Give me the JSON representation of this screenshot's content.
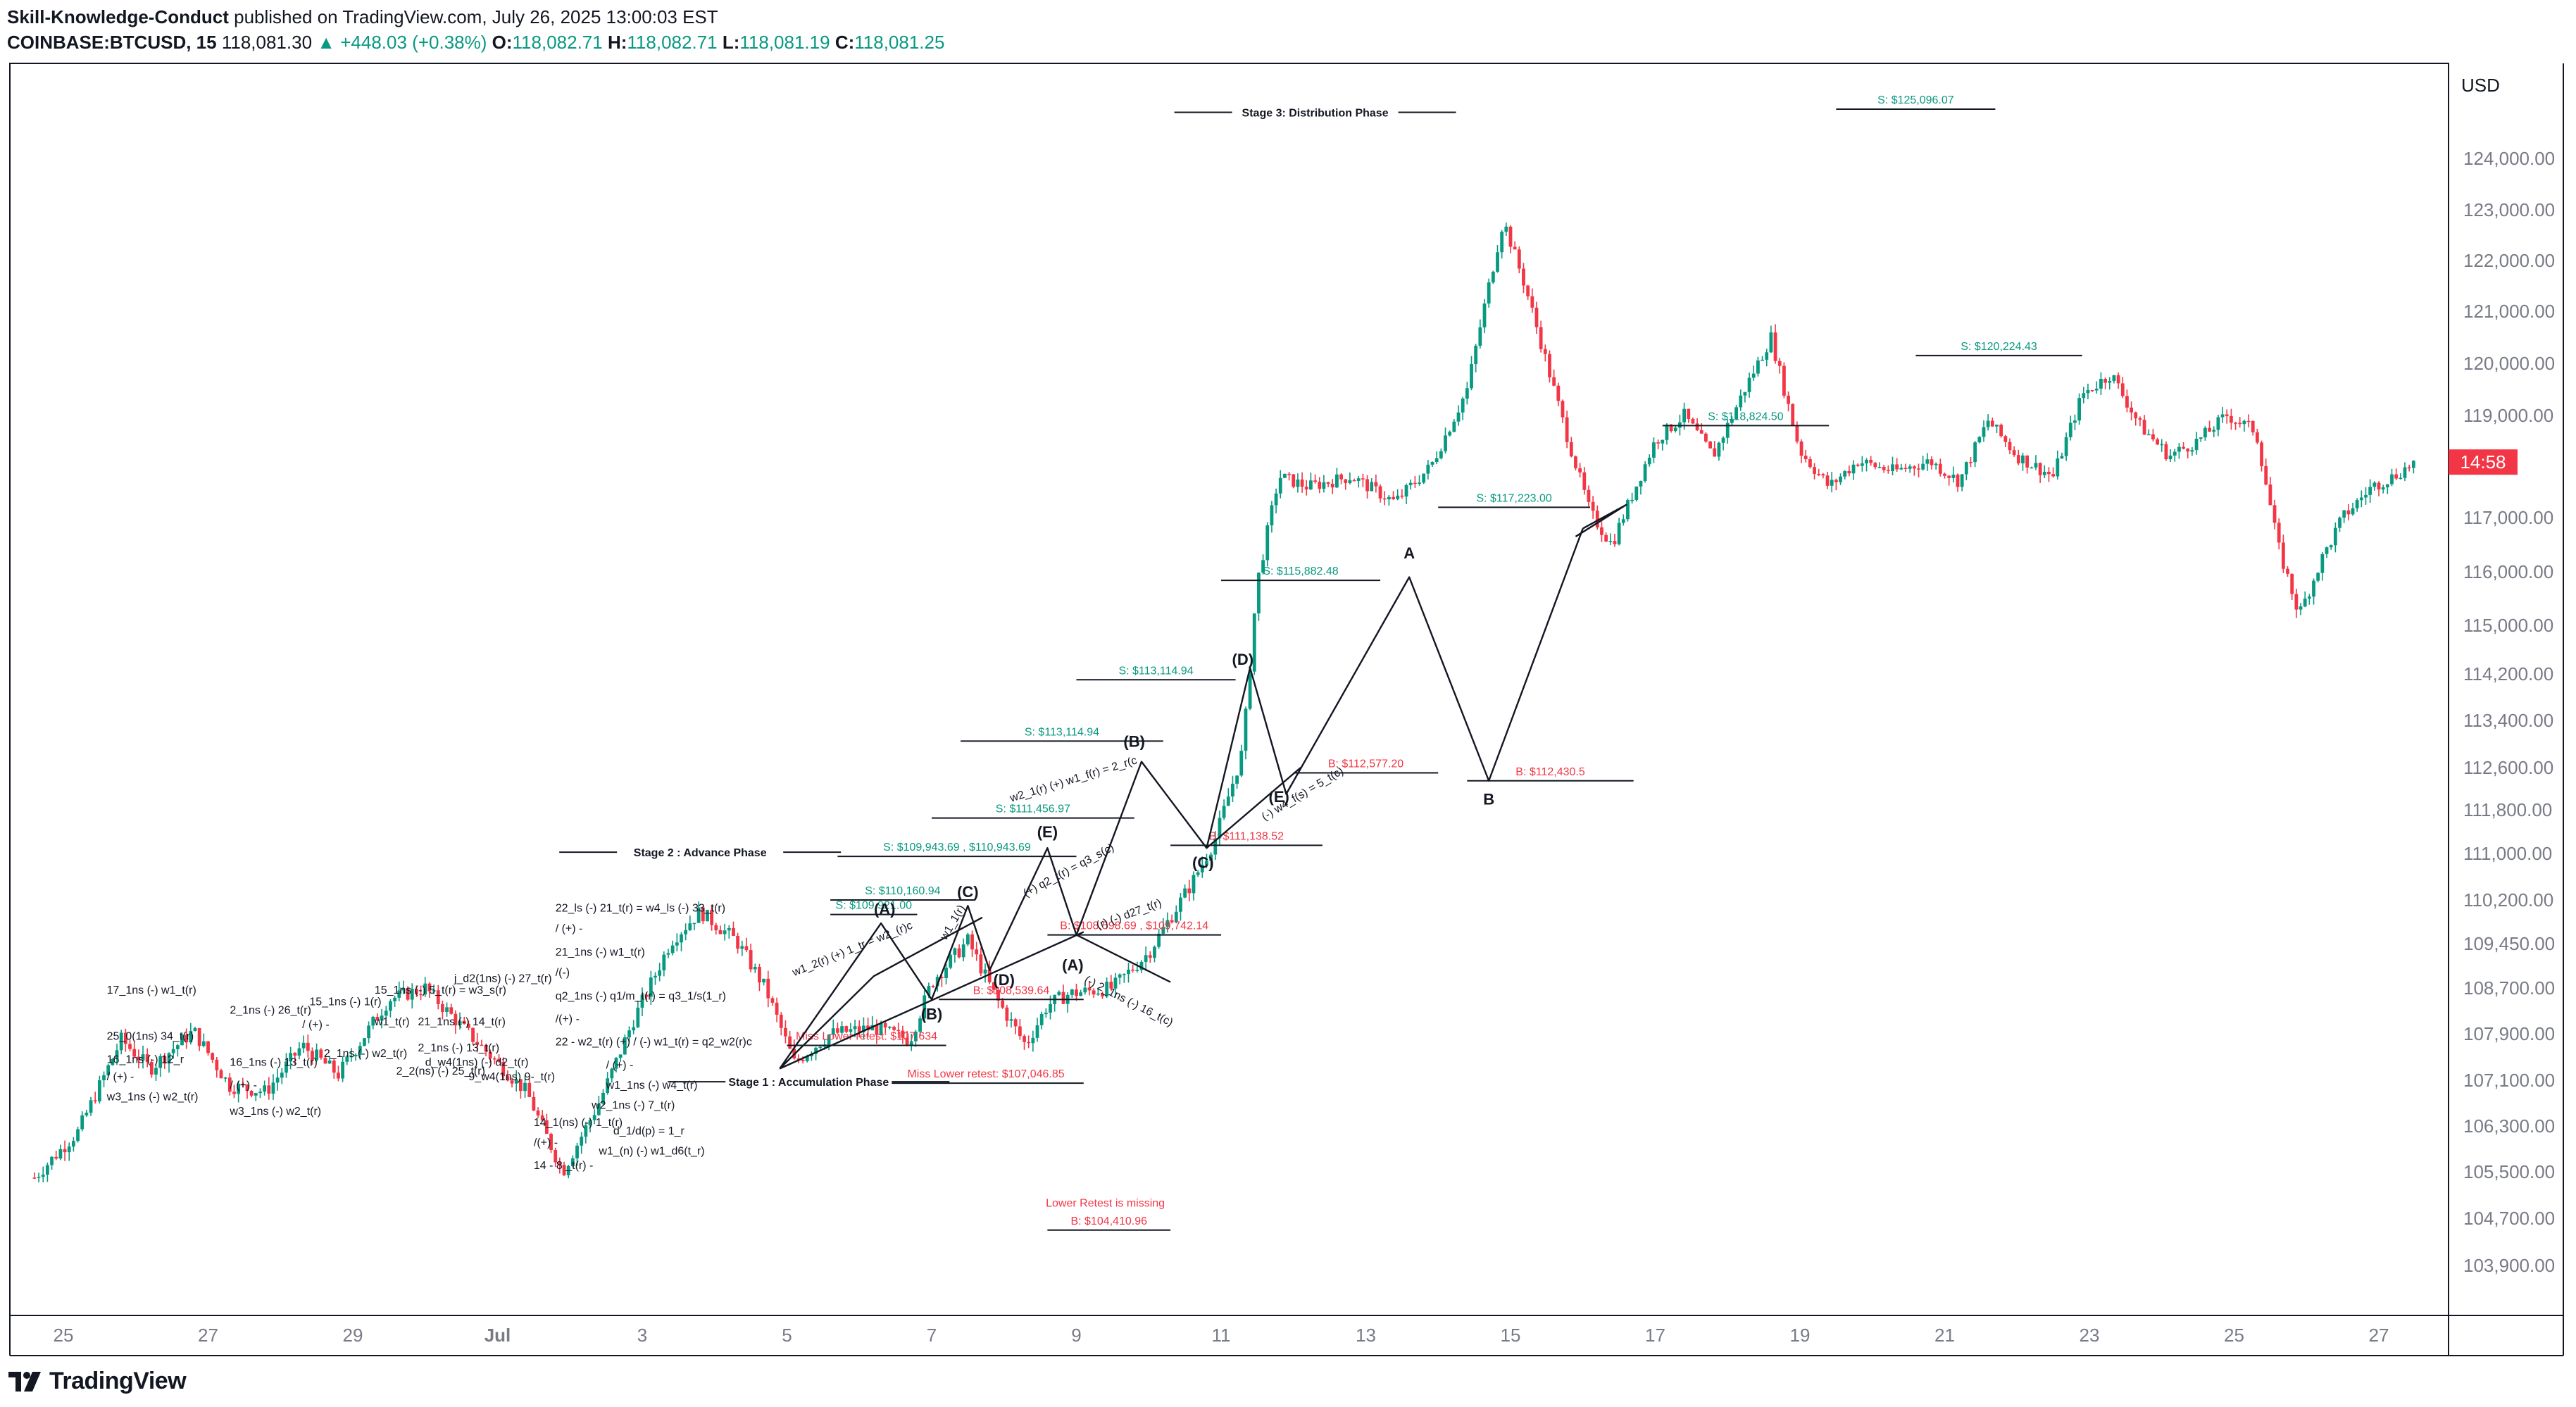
{
  "header": {
    "author": "Skill-Knowledge-Conduct",
    "published": "published on TradingView.com, July 26, 2025 13:00:03 EST",
    "symbol": "COINBASE:BTCUSD, 15",
    "last": "118,081.30",
    "change": "+448.03 (+0.38%)",
    "o_label": "O:",
    "o_value": "118,082.71",
    "h_label": "H:",
    "h_value": "118,082.71",
    "l_label": "L:",
    "l_value": "118,081.19",
    "c_label": "C:",
    "c_value": "118,081.25"
  },
  "footer": {
    "brand": "TradingView"
  },
  "colors": {
    "up": "#089981",
    "down": "#f23645",
    "line": "#131722",
    "axis": "#787b86"
  },
  "chart_data": {
    "type": "candlestick",
    "currency": "USD",
    "current_price_label": "14:58",
    "current_price": 118081,
    "x_tick_labels": [
      {
        "label": "25",
        "day": 0
      },
      {
        "label": "27",
        "day": 2
      },
      {
        "label": "29",
        "day": 4
      },
      {
        "label": "Jul",
        "day": 6
      },
      {
        "label": "3",
        "day": 8
      },
      {
        "label": "5",
        "day": 10
      },
      {
        "label": "7",
        "day": 12
      },
      {
        "label": "9",
        "day": 14
      },
      {
        "label": "11",
        "day": 16
      },
      {
        "label": "13",
        "day": 18
      },
      {
        "label": "15",
        "day": 20
      },
      {
        "label": "17",
        "day": 22
      },
      {
        "label": "19",
        "day": 24
      },
      {
        "label": "21",
        "day": 26
      },
      {
        "label": "23",
        "day": 28
      },
      {
        "label": "25",
        "day": 30
      },
      {
        "label": "27",
        "day": 32
      }
    ],
    "y_ticks": [
      {
        "label": "124,000.00",
        "value": 124000
      },
      {
        "label": "123,000.00",
        "value": 123000
      },
      {
        "label": "122,000.00",
        "value": 122000
      },
      {
        "label": "121,000.00",
        "value": 121000
      },
      {
        "label": "120,000.00",
        "value": 120000
      },
      {
        "label": "119,000.00",
        "value": 119000
      },
      {
        "label": "117,000.00",
        "value": 117000
      },
      {
        "label": "116,000.00",
        "value": 116000
      },
      {
        "label": "115,000.00",
        "value": 115000
      },
      {
        "label": "114,200.00",
        "value": 114200
      },
      {
        "label": "113,400.00",
        "value": 113400
      },
      {
        "label": "112,600.00",
        "value": 112600
      },
      {
        "label": "111,800.00",
        "value": 111800
      },
      {
        "label": "111,000.00",
        "value": 111000
      },
      {
        "label": "110,200.00",
        "value": 110200
      },
      {
        "label": "109,450.00",
        "value": 109450
      },
      {
        "label": "108,700.00",
        "value": 108700
      },
      {
        "label": "107,900.00",
        "value": 107900
      },
      {
        "label": "107,100.00",
        "value": 107100
      },
      {
        "label": "106,300.00",
        "value": 106300
      },
      {
        "label": "105,500.00",
        "value": 105500
      },
      {
        "label": "104,700.00",
        "value": 104700
      },
      {
        "label": "103,900.00",
        "value": 103900
      }
    ],
    "price_path": [
      {
        "day": -0.4,
        "price": 105400
      },
      {
        "day": 0.2,
        "price": 106200
      },
      {
        "day": 0.8,
        "price": 107800
      },
      {
        "day": 1.2,
        "price": 107300
      },
      {
        "day": 1.8,
        "price": 107950
      },
      {
        "day": 2.3,
        "price": 107000
      },
      {
        "day": 2.8,
        "price": 106900
      },
      {
        "day": 3.3,
        "price": 107700
      },
      {
        "day": 3.8,
        "price": 107200
      },
      {
        "day": 4.5,
        "price": 108500
      },
      {
        "day": 5.0,
        "price": 108700
      },
      {
        "day": 5.6,
        "price": 107900
      },
      {
        "day": 6.4,
        "price": 106900
      },
      {
        "day": 6.9,
        "price": 105500
      },
      {
        "day": 7.4,
        "price": 106700
      },
      {
        "day": 7.9,
        "price": 108200
      },
      {
        "day": 8.4,
        "price": 109500
      },
      {
        "day": 8.8,
        "price": 110000
      },
      {
        "day": 9.3,
        "price": 109500
      },
      {
        "day": 9.7,
        "price": 108700
      },
      {
        "day": 10.1,
        "price": 107400
      },
      {
        "day": 10.6,
        "price": 107900
      },
      {
        "day": 11.2,
        "price": 108000
      },
      {
        "day": 11.7,
        "price": 107800
      },
      {
        "day": 12.0,
        "price": 108800
      },
      {
        "day": 12.5,
        "price": 109500
      },
      {
        "day": 12.9,
        "price": 108500
      },
      {
        "day": 13.3,
        "price": 107700
      },
      {
        "day": 13.6,
        "price": 108400
      },
      {
        "day": 13.9,
        "price": 108600
      },
      {
        "day": 14.5,
        "price": 108700
      },
      {
        "day": 15.0,
        "price": 109300
      },
      {
        "day": 15.2,
        "price": 109700
      },
      {
        "day": 15.6,
        "price": 110500
      },
      {
        "day": 15.9,
        "price": 111200
      },
      {
        "day": 16.3,
        "price": 112900
      },
      {
        "day": 16.5,
        "price": 115800
      },
      {
        "day": 16.8,
        "price": 117800
      },
      {
        "day": 17.2,
        "price": 117600
      },
      {
        "day": 17.8,
        "price": 117800
      },
      {
        "day": 18.4,
        "price": 117300
      },
      {
        "day": 18.9,
        "price": 118000
      },
      {
        "day": 19.4,
        "price": 119500
      },
      {
        "day": 19.7,
        "price": 121500
      },
      {
        "day": 19.9,
        "price": 122800
      },
      {
        "day": 20.2,
        "price": 121500
      },
      {
        "day": 20.5,
        "price": 120000
      },
      {
        "day": 20.8,
        "price": 118500
      },
      {
        "day": 21.1,
        "price": 117100
      },
      {
        "day": 21.4,
        "price": 116500
      },
      {
        "day": 21.7,
        "price": 117500
      },
      {
        "day": 22.0,
        "price": 118500
      },
      {
        "day": 22.4,
        "price": 119000
      },
      {
        "day": 22.8,
        "price": 118200
      },
      {
        "day": 23.2,
        "price": 119400
      },
      {
        "day": 23.6,
        "price": 120500
      },
      {
        "day": 24.0,
        "price": 118300
      },
      {
        "day": 24.4,
        "price": 117600
      },
      {
        "day": 24.8,
        "price": 118100
      },
      {
        "day": 25.3,
        "price": 117900
      },
      {
        "day": 25.8,
        "price": 118100
      },
      {
        "day": 26.2,
        "price": 117700
      },
      {
        "day": 26.6,
        "price": 118900
      },
      {
        "day": 27.0,
        "price": 118200
      },
      {
        "day": 27.5,
        "price": 117800
      },
      {
        "day": 27.9,
        "price": 119400
      },
      {
        "day": 28.3,
        "price": 119800
      },
      {
        "day": 28.7,
        "price": 118800
      },
      {
        "day": 29.1,
        "price": 118200
      },
      {
        "day": 29.5,
        "price": 118500
      },
      {
        "day": 29.9,
        "price": 119000
      },
      {
        "day": 30.3,
        "price": 118700
      },
      {
        "day": 30.6,
        "price": 116500
      },
      {
        "day": 30.9,
        "price": 115200
      },
      {
        "day": 31.2,
        "price": 116200
      },
      {
        "day": 31.5,
        "price": 117000
      },
      {
        "day": 31.9,
        "price": 117600
      },
      {
        "day": 32.2,
        "price": 117800
      },
      {
        "day": 32.5,
        "price": 118081
      }
    ],
    "phase_labels": [
      {
        "text": "Stage 1 : Accumulation Phase",
        "day": 10.3,
        "price": 107000
      },
      {
        "text": "Stage 2 : Advance Phase",
        "day": 8.8,
        "price": 110950
      },
      {
        "text": "Stage 3: Distribution Phase",
        "day": 17.3,
        "price": 124850
      }
    ],
    "levels": [
      {
        "text": "S: $125,096.07",
        "color": "up",
        "d1": 24.5,
        "d2": 26.7,
        "price": 125000
      },
      {
        "text": "S: $120,224.43",
        "color": "up",
        "d1": 25.6,
        "d2": 27.9,
        "price": 120150
      },
      {
        "text": "S: $118,824.50",
        "color": "up",
        "d1": 22.1,
        "d2": 24.4,
        "price": 118800
      },
      {
        "text": "S: $117,223.00",
        "color": "up",
        "d1": 19.0,
        "d2": 21.1,
        "price": 117200
      },
      {
        "text": "S: $115,882.48",
        "color": "up",
        "d1": 16.0,
        "d2": 18.2,
        "price": 115840
      },
      {
        "text": "S: $113,114.94",
        "color": "up",
        "d1": 14.0,
        "d2": 16.2,
        "price": 114100
      },
      {
        "text": "S: $113,114.94",
        "color": "up",
        "d1": 12.4,
        "d2": 15.2,
        "price": 113050
      },
      {
        "text": "S: $111,456.97",
        "color": "up",
        "d1": 12.0,
        "d2": 14.8,
        "price": 111650
      },
      {
        "text": "S: $109,943.69 , $110,943.69",
        "color": "up",
        "d1": 10.7,
        "d2": 14.0,
        "price": 110950
      },
      {
        "text": "S: $110,160.94",
        "color": "up",
        "d1": 10.6,
        "d2": 12.6,
        "price": 110200
      },
      {
        "text": "S: $109,921.00",
        "color": "up",
        "d1": 10.6,
        "d2": 11.8,
        "price": 109950
      },
      {
        "text": "B: $112,577.20",
        "color": "down",
        "d1": 17.0,
        "d2": 19.0,
        "price": 112500
      },
      {
        "text": "B: $112,430.5",
        "color": "down",
        "d1": 19.4,
        "d2": 21.7,
        "price": 112350
      },
      {
        "text": "B: $111,138.52",
        "color": "down",
        "d1": 15.3,
        "d2": 17.4,
        "price": 111150
      },
      {
        "text": "B: $108,598.69 , $109,742.14",
        "color": "down",
        "d1": 13.6,
        "d2": 16.0,
        "price": 109600
      },
      {
        "text": "B: $108,539.64",
        "color": "down",
        "d1": 12.1,
        "d2": 14.1,
        "price": 108500
      },
      {
        "text": "Miss Lower retest: $107,634",
        "color": "down",
        "d1": 10.0,
        "d2": 12.2,
        "price": 107700
      },
      {
        "text": "Miss Lower retest: $107,046.85",
        "color": "down",
        "d1": 11.4,
        "d2": 14.1,
        "price": 107050
      },
      {
        "text": "B: $104,410.96",
        "color": "down",
        "d1": 13.6,
        "d2": 15.3,
        "price": 104500
      }
    ],
    "note": {
      "text": "Lower Retest is missing",
      "day": 14.4,
      "price": 104900
    },
    "wave_paths": [
      [
        {
          "day": 9.9,
          "price": 107300
        },
        {
          "day": 11.3,
          "price": 109800
        },
        {
          "day": 12.0,
          "price": 108500
        },
        {
          "day": 12.5,
          "price": 110100
        },
        {
          "day": 12.8,
          "price": 109000
        },
        {
          "day": 13.6,
          "price": 111100
        },
        {
          "day": 14.0,
          "price": 109600
        },
        {
          "day": 14.9,
          "price": 112700
        },
        {
          "day": 15.8,
          "price": 111100
        },
        {
          "day": 16.4,
          "price": 114300
        },
        {
          "day": 16.9,
          "price": 112100
        },
        {
          "day": 18.6,
          "price": 115900
        },
        {
          "day": 19.7,
          "price": 112350
        },
        {
          "day": 21.0,
          "price": 116800
        }
      ],
      [
        {
          "day": 9.9,
          "price": 107300
        },
        {
          "day": 14.1,
          "price": 109650
        }
      ],
      [
        {
          "day": 9.9,
          "price": 107300
        },
        {
          "day": 11.2,
          "price": 108900
        },
        {
          "day": 12.7,
          "price": 109900
        }
      ],
      [
        {
          "day": 14.0,
          "price": 109600
        },
        {
          "day": 15.3,
          "price": 108800
        }
      ],
      [
        {
          "day": 15.8,
          "price": 111100
        },
        {
          "day": 17.1,
          "price": 112600
        }
      ],
      [
        {
          "day": 21.0,
          "price": 116800
        },
        {
          "day": 21.6,
          "price": 117250
        },
        {
          "day": 20.9,
          "price": 116650
        }
      ]
    ],
    "wave_labels": [
      {
        "text": "(A)",
        "day": 11.35,
        "price": 109950
      },
      {
        "text": "(B)",
        "day": 12.0,
        "price": 108150
      },
      {
        "text": "(C)",
        "day": 12.5,
        "price": 110250
      },
      {
        "text": "(D)",
        "day": 13.0,
        "price": 108750
      },
      {
        "text": "(E)",
        "day": 13.6,
        "price": 111300
      },
      {
        "text": "(A)",
        "day": 13.95,
        "price": 109000
      },
      {
        "text": "(B)",
        "day": 14.8,
        "price": 112950
      },
      {
        "text": "(C)",
        "day": 15.75,
        "price": 110750
      },
      {
        "text": "(D)",
        "day": 16.3,
        "price": 114350
      },
      {
        "text": "(E)",
        "day": 16.8,
        "price": 111950
      },
      {
        "text": "A",
        "day": 18.6,
        "price": 116250
      },
      {
        "text": "B",
        "day": 19.7,
        "price": 111900
      }
    ],
    "annotations": [
      {
        "text": "17_1ns (-) w1_t(r)",
        "day": 0.6,
        "price": 108600
      },
      {
        "text": "2_1ns (-) 26_t(r)",
        "day": 2.3,
        "price": 108250
      },
      {
        "text": "15_1ns (-) 1(r)",
        "day": 3.4,
        "price": 108400
      },
      {
        "text": "15_1ns (-) 5_t(r) = w3_s(r)",
        "day": 4.3,
        "price": 108600
      },
      {
        "text": "25_0(1ns) 34_t(r)",
        "day": 0.6,
        "price": 107800
      },
      {
        "text": "/ (+) -",
        "day": 3.3,
        "price": 108000
      },
      {
        "text": "w1_t(r)",
        "day": 4.3,
        "price": 108050
      },
      {
        "text": "21_1ns (-) 14_t(r)",
        "day": 4.9,
        "price": 108050
      },
      {
        "text": "j_d2(1ns) (-) 27_t(r)",
        "day": 5.4,
        "price": 108800
      },
      {
        "text": "16_1ns (-) 12_r",
        "day": 0.6,
        "price": 107400
      },
      {
        "text": "16_1ns (-) 13_t(r)",
        "day": 2.3,
        "price": 107350
      },
      {
        "text": "2_1ns (-) w2_t(r)",
        "day": 3.6,
        "price": 107500
      },
      {
        "text": "2_1ns (-) 13_t(r)",
        "day": 4.9,
        "price": 107600
      },
      {
        "text": "/ (+) -",
        "day": 0.6,
        "price": 107100
      },
      {
        "text": "2_2(ns) (-) 25_t(r)",
        "day": 4.6,
        "price": 107200
      },
      {
        "text": "d_w4(1ns) (-) d2_t(r)",
        "day": 5.0,
        "price": 107350
      },
      {
        "text": "w3_1ns (-) w2_t(r)",
        "day": 0.6,
        "price": 106750
      },
      {
        "text": "/ (+) -",
        "day": 2.3,
        "price": 106950
      },
      {
        "text": "w3_1ns (-) w2_t(r)",
        "day": 2.3,
        "price": 106500
      },
      {
        "text": "9_w4(1ns) 9-_t(r)",
        "day": 5.6,
        "price": 107100
      },
      {
        "text": "22_ls (-) 21_t(r) = w4_ls (-) 33_t(r)",
        "day": 6.8,
        "price": 110000
      },
      {
        "text": "/ (+) -",
        "day": 6.8,
        "price": 109650
      },
      {
        "text": "21_1ns (-) w1_t(r)",
        "day": 6.8,
        "price": 109250
      },
      {
        "text": "/(-)",
        "day": 6.8,
        "price": 108900
      },
      {
        "text": "q2_1ns (-) q1/m_t(r) = q3_1/s(1_r)",
        "day": 6.8,
        "price": 108500
      },
      {
        "text": "/(+) -",
        "day": 6.8,
        "price": 108100
      },
      {
        "text": "22 - w2_t(r) (+) / (-) w1_t(r) = q2_w2(r)c",
        "day": 6.8,
        "price": 107700
      },
      {
        "text": "/ (+) -",
        "day": 7.5,
        "price": 107300
      },
      {
        "text": "w1_1ns (-) w4_t(r)",
        "day": 7.5,
        "price": 106950
      },
      {
        "text": "w2_1ns (-) 7_t(r)",
        "day": 7.3,
        "price": 106600
      },
      {
        "text": "14_1(ns) (-) 1_t(r)",
        "day": 6.5,
        "price": 106300
      },
      {
        "text": "d_1/d(p) = 1_r",
        "day": 7.6,
        "price": 106150
      },
      {
        "text": "/(+) -",
        "day": 6.5,
        "price": 105950
      },
      {
        "text": "w1_(n) (-) w1_d6(t_r)",
        "day": 7.4,
        "price": 105800
      },
      {
        "text": "14 - 8 _t(r) -",
        "day": 6.5,
        "price": 105550
      }
    ],
    "wave_text": [
      {
        "text": "w2_1(r) (+) w1_f(r) = 2_r(c",
        "day": 13.1,
        "price": 111950,
        "angle": -17
      },
      {
        "text": "w1_2(r) (+) 1_tr = w2_(r)c",
        "day": 10.1,
        "price": 108900,
        "angle": -22
      },
      {
        "text": "(+) q2_t(r) = q3_s(c)",
        "day": 13.3,
        "price": 110250,
        "angle": -28
      },
      {
        "text": "(-) 2_1ns (-) 16_t(c)",
        "day": 14.1,
        "price": 108800,
        "angle": 27
      },
      {
        "text": "(-) w4_f(s) = 5_t(c)",
        "day": 16.6,
        "price": 111600,
        "angle": -31
      },
      {
        "text": "(r) (-) d27_t(r)",
        "day": 14.3,
        "price": 109700,
        "angle": -20
      },
      {
        "text": "w1_1(r)",
        "day": 12.2,
        "price": 109500,
        "angle": -60
      }
    ]
  }
}
